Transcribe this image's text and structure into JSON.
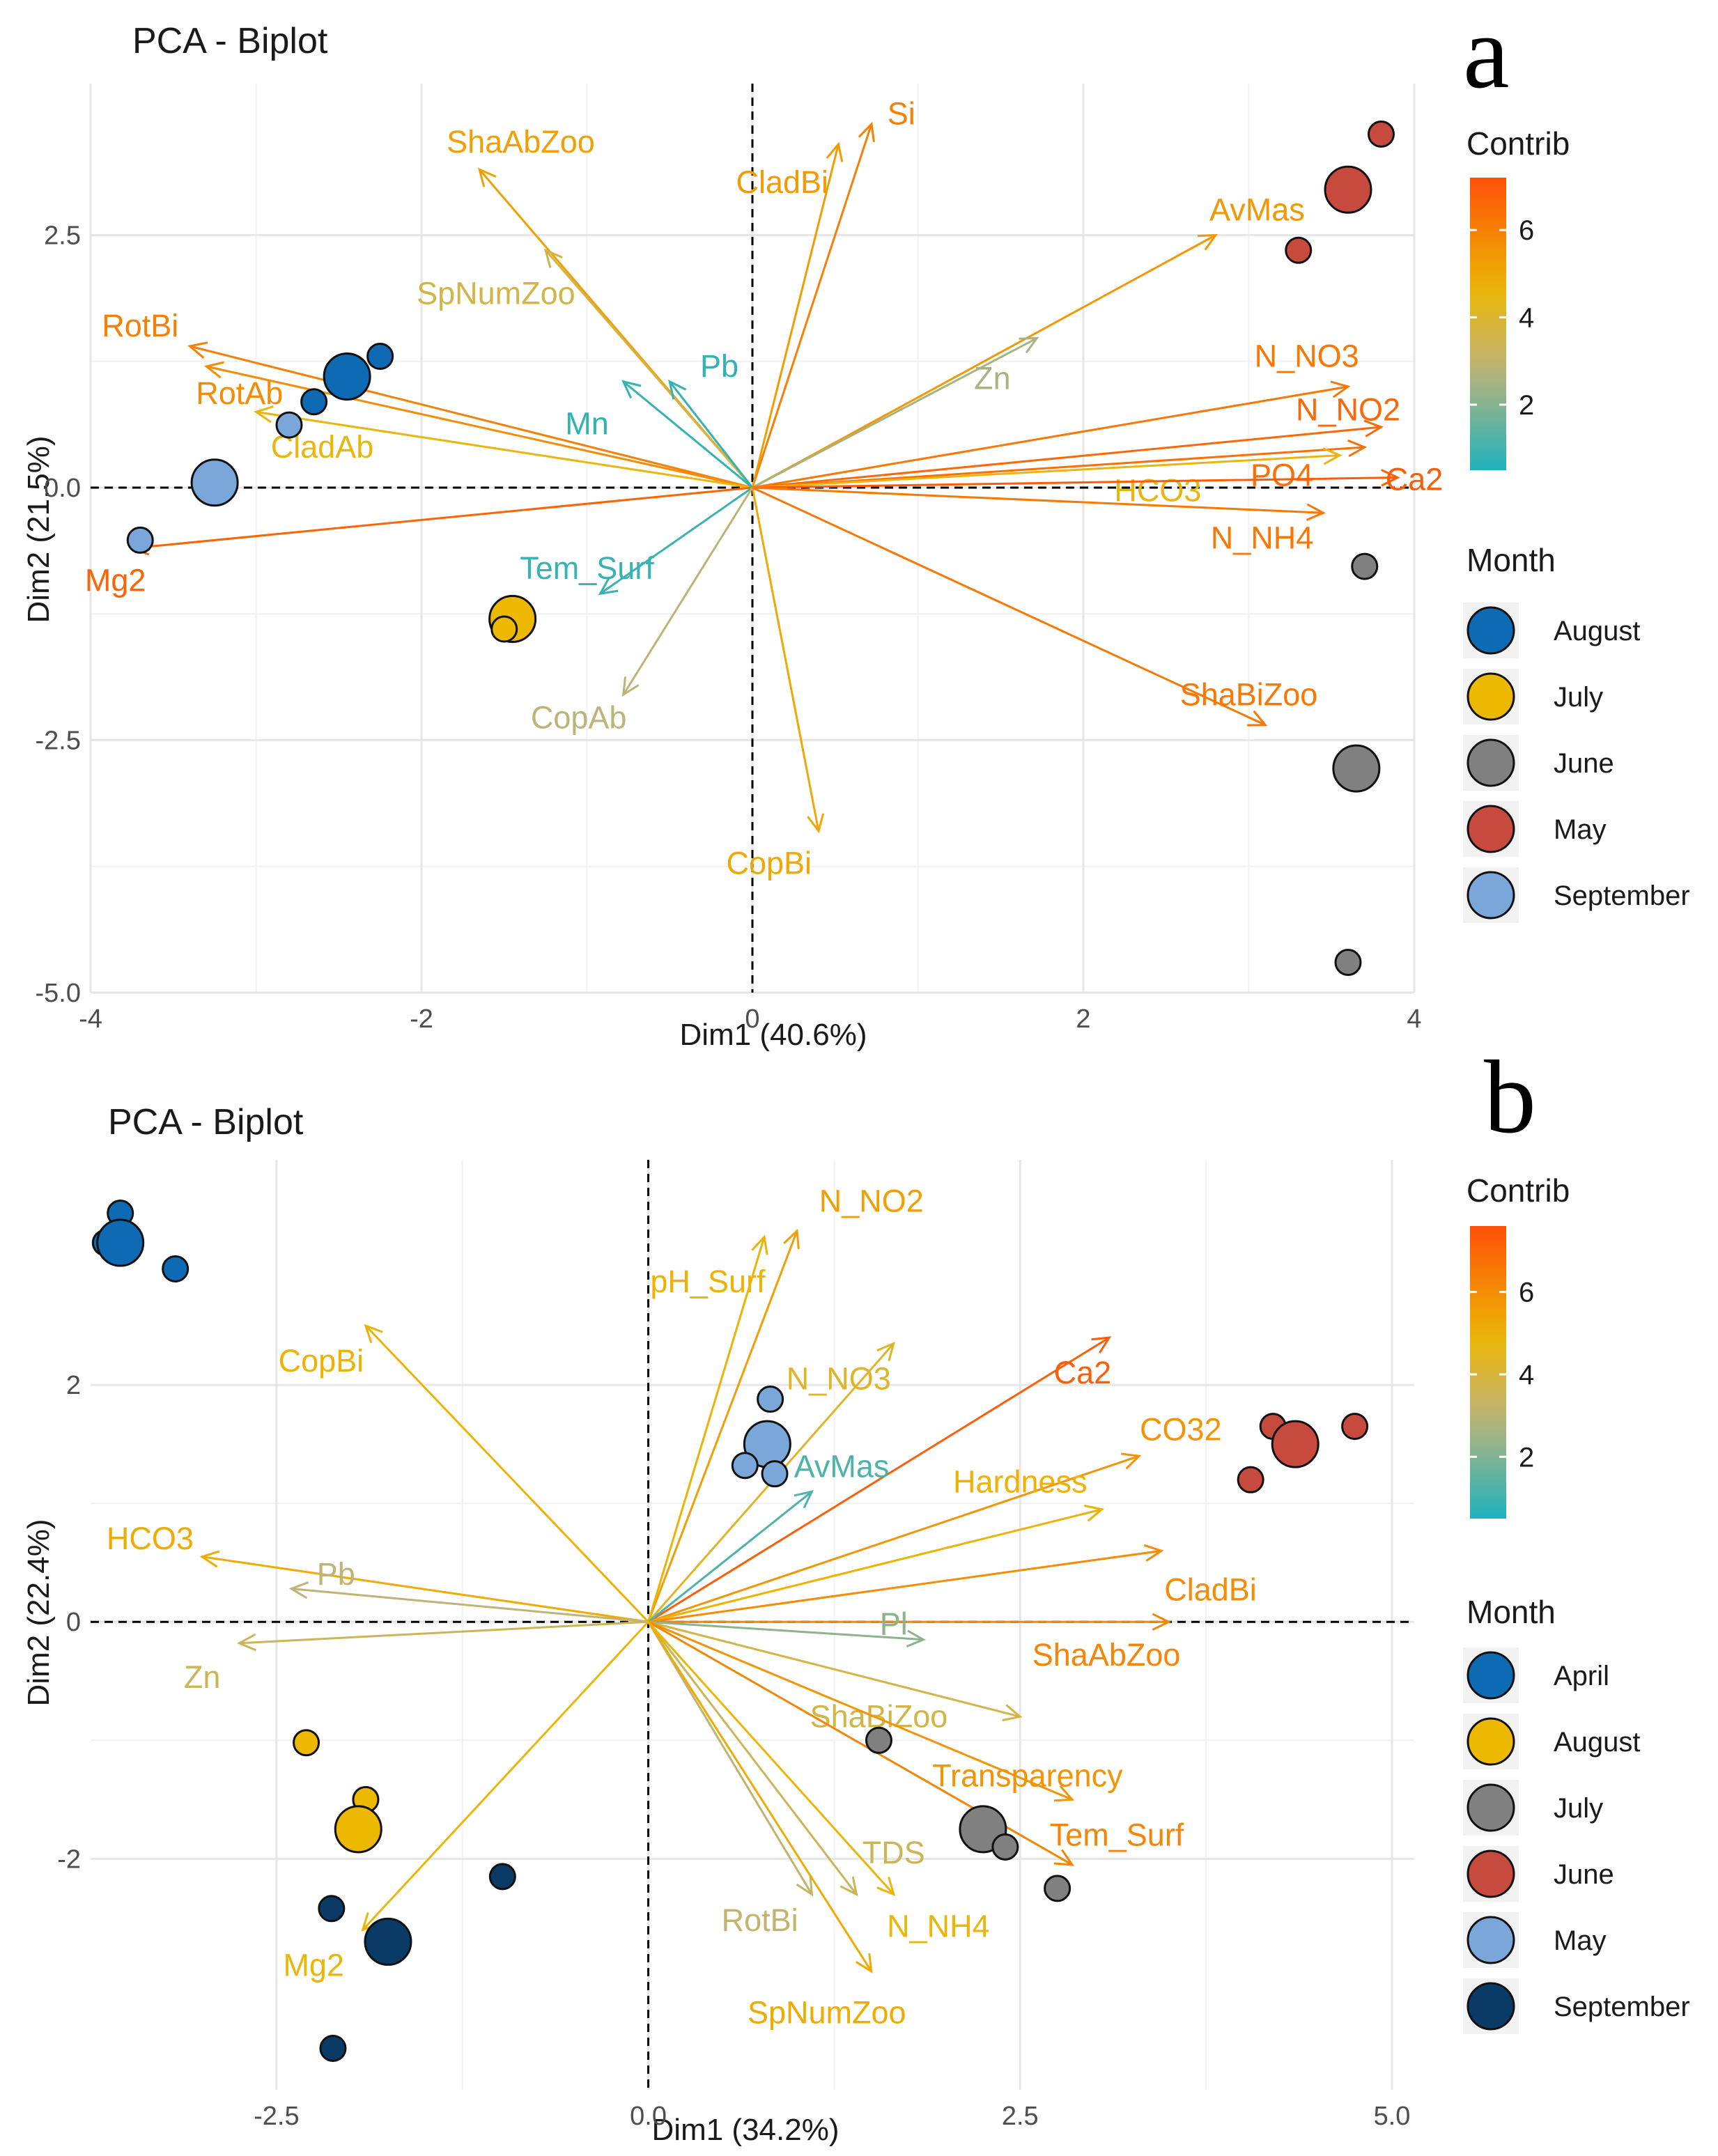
{
  "chart_data": [
    {
      "type": "scatter",
      "panel": "a",
      "title": "PCA - Biplot",
      "xlabel": "Dim1 (40.6%)",
      "ylabel": "Dim2 (21.5%)",
      "xlim": [
        -4.0,
        4.0
      ],
      "ylim": [
        -5.0,
        4.0
      ],
      "xticks": [
        -4,
        -2,
        0,
        2,
        4
      ],
      "xtick_labels": [
        "-4",
        "-2",
        "0",
        "2",
        "4"
      ],
      "yticks": [
        2.5,
        0.0,
        -2.5,
        -5.0
      ],
      "ytick_labels": [
        "2.5",
        "0.0",
        "-2.5",
        "-5.0"
      ],
      "contrib_legend": {
        "title": "Contrib",
        "ticks": [
          2,
          4,
          6
        ],
        "tick_labels": [
          "2",
          "4",
          "6"
        ],
        "min": 0.5,
        "max": 7.2
      },
      "month_legend": {
        "title": "Month",
        "items": [
          {
            "label": "August",
            "color": "#0f6ab4"
          },
          {
            "label": "July",
            "color": "#edb800"
          },
          {
            "label": "June",
            "color": "#808080"
          },
          {
            "label": "May",
            "color": "#c74a3f"
          },
          {
            "label": "September",
            "color": "#7aa6d9"
          }
        ]
      },
      "points": [
        {
          "x": 3.8,
          "y": 3.5,
          "group": "May",
          "size": "small"
        },
        {
          "x": 3.6,
          "y": 2.95,
          "group": "May",
          "size": "large"
        },
        {
          "x": 3.3,
          "y": 2.35,
          "group": "May",
          "size": "small"
        },
        {
          "x": -2.25,
          "y": 1.3,
          "group": "August",
          "size": "small"
        },
        {
          "x": -2.45,
          "y": 1.1,
          "group": "August",
          "size": "large"
        },
        {
          "x": -2.65,
          "y": 0.85,
          "group": "August",
          "size": "small"
        },
        {
          "x": -2.8,
          "y": 0.62,
          "group": "September",
          "size": "small"
        },
        {
          "x": -3.25,
          "y": 0.05,
          "group": "September",
          "size": "large"
        },
        {
          "x": -3.7,
          "y": -0.52,
          "group": "September",
          "size": "small"
        },
        {
          "x": -1.45,
          "y": -1.2,
          "group": "July",
          "size": "small"
        },
        {
          "x": -1.45,
          "y": -1.3,
          "group": "July",
          "size": "large"
        },
        {
          "x": -1.5,
          "y": -1.4,
          "group": "July",
          "size": "small"
        },
        {
          "x": 3.7,
          "y": -0.78,
          "group": "June",
          "size": "small"
        },
        {
          "x": 3.65,
          "y": -2.78,
          "group": "June",
          "size": "large"
        },
        {
          "x": 3.6,
          "y": -4.7,
          "group": "June",
          "size": "small"
        }
      ],
      "vectors": [
        {
          "name": "Si",
          "x": 0.72,
          "y": 3.6,
          "contrib": 6.0,
          "lx": 0.9,
          "ly": 3.7
        },
        {
          "name": "CladBi",
          "x": 0.52,
          "y": 3.4,
          "contrib": 5.3,
          "lx": 0.18,
          "ly": 3.02
        },
        {
          "name": "ShaAbZoo",
          "x": -1.65,
          "y": 3.15,
          "contrib": 5.2,
          "lx": -1.4,
          "ly": 3.42
        },
        {
          "name": "SpNumZoo",
          "x": -1.25,
          "y": 2.35,
          "contrib": 3.6,
          "lx": -1.55,
          "ly": 1.92
        },
        {
          "name": "AvMas",
          "x": 2.8,
          "y": 2.5,
          "contrib": 5.4,
          "lx": 3.05,
          "ly": 2.75
        },
        {
          "name": "RotBi",
          "x": -3.4,
          "y": 1.4,
          "contrib": 6.0,
          "lx": -3.7,
          "ly": 1.6
        },
        {
          "name": "RotAb",
          "x": -3.3,
          "y": 1.2,
          "contrib": 5.7,
          "lx": -3.1,
          "ly": 0.93
        },
        {
          "name": "CladAb",
          "x": -3.0,
          "y": 0.75,
          "contrib": 4.5,
          "lx": -2.6,
          "ly": 0.4
        },
        {
          "name": "Pb",
          "x": -0.5,
          "y": 1.05,
          "contrib": 0.8,
          "lx": -0.2,
          "ly": 1.2
        },
        {
          "name": "Mn",
          "x": -0.78,
          "y": 1.05,
          "contrib": 0.8,
          "lx": -1.0,
          "ly": 0.63
        },
        {
          "name": "Zn",
          "x": 1.72,
          "y": 1.48,
          "contrib": 2.5,
          "lx": 1.45,
          "ly": 1.08
        },
        {
          "name": "N_NO3",
          "x": 3.6,
          "y": 1.0,
          "contrib": 6.2,
          "lx": 3.35,
          "ly": 1.3
        },
        {
          "name": "N_NO2",
          "x": 3.8,
          "y": 0.6,
          "contrib": 6.6,
          "lx": 3.6,
          "ly": 0.77
        },
        {
          "name": "PO4",
          "x": 3.7,
          "y": 0.4,
          "contrib": 6.4,
          "lx": 3.2,
          "ly": 0.12
        },
        {
          "name": "HCO3",
          "x": 3.55,
          "y": 0.32,
          "contrib": 4.5,
          "lx": 2.45,
          "ly": -0.03
        },
        {
          "name": "Ca2",
          "x": 3.9,
          "y": 0.1,
          "contrib": 6.9,
          "lx": 4.0,
          "ly": 0.08
        },
        {
          "name": "N_NH4",
          "x": 3.45,
          "y": -0.25,
          "contrib": 6.2,
          "lx": 3.08,
          "ly": -0.5
        },
        {
          "name": "Mg2",
          "x": -3.75,
          "y": -0.6,
          "contrib": 6.7,
          "lx": -3.85,
          "ly": -0.92
        },
        {
          "name": "Tem_Surf",
          "x": -0.92,
          "y": -1.05,
          "contrib": 0.9,
          "lx": -1.0,
          "ly": -0.8
        },
        {
          "name": "CopAb",
          "x": -0.78,
          "y": -2.05,
          "contrib": 2.8,
          "lx": -1.05,
          "ly": -2.28
        },
        {
          "name": "CopBi",
          "x": 0.4,
          "y": -3.4,
          "contrib": 5.0,
          "lx": 0.1,
          "ly": -3.72
        },
        {
          "name": "ShaBiZoo",
          "x": 3.1,
          "y": -2.35,
          "contrib": 6.2,
          "lx": 3.0,
          "ly": -2.05
        }
      ]
    },
    {
      "type": "scatter",
      "panel": "b",
      "title": "PCA - Biplot",
      "xlabel": "Dim1 (34.2%)",
      "ylabel": "Dim2 (22.4%)",
      "xlim": [
        -3.75,
        5.15
      ],
      "ylim": [
        -3.95,
        3.9
      ],
      "xticks": [
        -2.5,
        0.0,
        2.5,
        5.0
      ],
      "xtick_labels": [
        "-2.5",
        "0.0",
        "2.5",
        "5.0"
      ],
      "yticks": [
        2,
        0,
        -2
      ],
      "ytick_labels": [
        "2",
        "0",
        "-2"
      ],
      "contrib_legend": {
        "title": "Contrib",
        "ticks": [
          2,
          4,
          6
        ],
        "tick_labels": [
          "2",
          "4",
          "6"
        ],
        "min": 0.5,
        "max": 7.6
      },
      "month_legend": {
        "title": "Month",
        "items": [
          {
            "label": "April",
            "color": "#0f6ab4"
          },
          {
            "label": "August",
            "color": "#edb800"
          },
          {
            "label": "July",
            "color": "#808080"
          },
          {
            "label": "June",
            "color": "#c74a3f"
          },
          {
            "label": "May",
            "color": "#7aa6d9"
          },
          {
            "label": "September",
            "color": "#0a3a66"
          }
        ]
      },
      "points": [
        {
          "x": -3.65,
          "y": 3.2,
          "group": "April",
          "size": "small"
        },
        {
          "x": -3.55,
          "y": 3.45,
          "group": "April",
          "size": "small"
        },
        {
          "x": -3.55,
          "y": 3.2,
          "group": "April",
          "size": "large"
        },
        {
          "x": -3.18,
          "y": 2.98,
          "group": "April",
          "size": "small"
        },
        {
          "x": 0.82,
          "y": 1.88,
          "group": "May",
          "size": "small"
        },
        {
          "x": 0.8,
          "y": 1.5,
          "group": "May",
          "size": "large"
        },
        {
          "x": 0.65,
          "y": 1.32,
          "group": "May",
          "size": "small"
        },
        {
          "x": 0.85,
          "y": 1.25,
          "group": "May",
          "size": "small"
        },
        {
          "x": 4.2,
          "y": 1.65,
          "group": "June",
          "size": "small"
        },
        {
          "x": 4.35,
          "y": 1.5,
          "group": "June",
          "size": "large"
        },
        {
          "x": 4.05,
          "y": 1.2,
          "group": "June",
          "size": "small"
        },
        {
          "x": 4.75,
          "y": 1.65,
          "group": "June",
          "size": "small"
        },
        {
          "x": 1.55,
          "y": -1.0,
          "group": "July",
          "size": "small"
        },
        {
          "x": 2.25,
          "y": -1.75,
          "group": "July",
          "size": "large"
        },
        {
          "x": 2.4,
          "y": -1.9,
          "group": "July",
          "size": "small"
        },
        {
          "x": 2.75,
          "y": -2.25,
          "group": "July",
          "size": "small"
        },
        {
          "x": -2.3,
          "y": -1.02,
          "group": "August",
          "size": "small"
        },
        {
          "x": -1.9,
          "y": -1.5,
          "group": "August",
          "size": "small"
        },
        {
          "x": -1.95,
          "y": -1.75,
          "group": "August",
          "size": "large"
        },
        {
          "x": -0.98,
          "y": -2.15,
          "group": "September",
          "size": "small"
        },
        {
          "x": -2.13,
          "y": -2.42,
          "group": "September",
          "size": "small"
        },
        {
          "x": -1.75,
          "y": -2.7,
          "group": "September",
          "size": "large"
        },
        {
          "x": -2.12,
          "y": -3.6,
          "group": "September",
          "size": "small"
        }
      ],
      "vectors": [
        {
          "name": "N_NO2",
          "x": 1.0,
          "y": 3.3,
          "contrib": 5.5,
          "lx": 1.5,
          "ly": 3.55
        },
        {
          "name": "pH_Surf",
          "x": 0.78,
          "y": 3.25,
          "contrib": 5.0,
          "lx": 0.4,
          "ly": 2.87
        },
        {
          "name": "N_NO3",
          "x": 1.65,
          "y": 2.35,
          "contrib": 4.3,
          "lx": 1.28,
          "ly": 2.05
        },
        {
          "name": "Ca2",
          "x": 3.1,
          "y": 2.4,
          "contrib": 7.2,
          "lx": 2.92,
          "ly": 2.1
        },
        {
          "name": "CO32",
          "x": 3.3,
          "y": 1.4,
          "contrib": 5.8,
          "lx": 3.58,
          "ly": 1.62
        },
        {
          "name": "Hardness",
          "x": 3.05,
          "y": 0.95,
          "contrib": 5.0,
          "lx": 2.5,
          "ly": 1.18
        },
        {
          "name": "AvMas",
          "x": 1.1,
          "y": 1.1,
          "contrib": 1.2,
          "lx": 1.3,
          "ly": 1.31
        },
        {
          "name": "CladBi",
          "x": 3.45,
          "y": 0.6,
          "contrib": 6.0,
          "lx": 3.78,
          "ly": 0.27
        },
        {
          "name": "ShaAbZoo",
          "x": 3.5,
          "y": 0.0,
          "contrib": 6.2,
          "lx": 3.08,
          "ly": -0.28
        },
        {
          "name": "Pl",
          "x": 1.85,
          "y": -0.15,
          "contrib": 2.2,
          "lx": 1.65,
          "ly": -0.02
        },
        {
          "name": "ShaBiZoo",
          "x": 2.5,
          "y": -0.8,
          "contrib": 3.8,
          "lx": 1.55,
          "ly": -0.8
        },
        {
          "name": "Transparency",
          "x": 2.85,
          "y": -1.5,
          "contrib": 5.8,
          "lx": 2.55,
          "ly": -1.3
        },
        {
          "name": "Tem_Surf",
          "x": 2.85,
          "y": -2.05,
          "contrib": 6.2,
          "lx": 3.15,
          "ly": -1.8
        },
        {
          "name": "TDS",
          "x": 1.4,
          "y": -2.3,
          "contrib": 3.5,
          "lx": 1.65,
          "ly": -1.95
        },
        {
          "name": "RotBi",
          "x": 1.1,
          "y": -2.3,
          "contrib": 3.2,
          "lx": 0.75,
          "ly": -2.52
        },
        {
          "name": "N_NH4",
          "x": 1.65,
          "y": -2.3,
          "contrib": 4.8,
          "lx": 1.95,
          "ly": -2.57
        },
        {
          "name": "SpNumZoo",
          "x": 1.5,
          "y": -2.95,
          "contrib": 5.2,
          "lx": 1.2,
          "ly": -3.3
        },
        {
          "name": "CopBi",
          "x": -1.9,
          "y": 2.5,
          "contrib": 5.0,
          "lx": -2.2,
          "ly": 2.2
        },
        {
          "name": "HCO3",
          "x": -3.0,
          "y": 0.55,
          "contrib": 5.2,
          "lx": -3.35,
          "ly": 0.7
        },
        {
          "name": "Pb",
          "x": -2.4,
          "y": 0.28,
          "contrib": 3.0,
          "lx": -2.1,
          "ly": 0.4
        },
        {
          "name": "Zn",
          "x": -2.75,
          "y": -0.18,
          "contrib": 3.5,
          "lx": -3.0,
          "ly": -0.47
        },
        {
          "name": "Mg2",
          "x": -1.92,
          "y": -2.6,
          "contrib": 4.8,
          "lx": -2.25,
          "ly": -2.9
        }
      ]
    }
  ]
}
